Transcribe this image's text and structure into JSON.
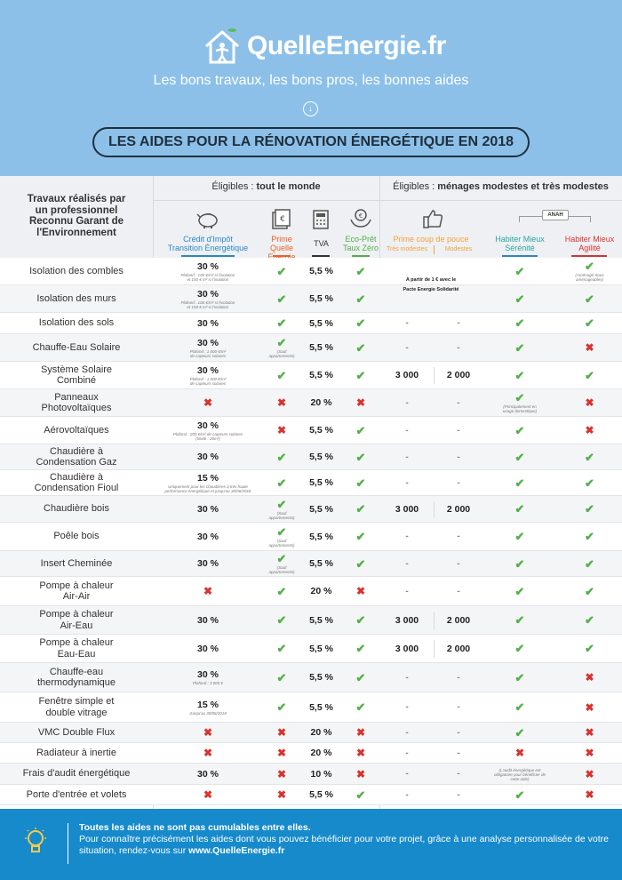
{
  "header": {
    "brand": "QuelleEnergie.fr",
    "tagline": "Les bons travaux, les bons pros, les bonnes aides",
    "title": "LES AIDES POUR LA RÉNOVATION ÉNERGÉTIQUE EN 2018"
  },
  "table": {
    "row_header": "Travaux réalisés par un professionnel Reconnu Garant de l'Environnement",
    "groups": {
      "all_prefix": "Éligibles :",
      "all": "tout le monde",
      "modest_prefix": "Éligibles :",
      "modest": "ménages modestes et très modestes"
    },
    "columns": {
      "citee_1": "Crédit d'Impôt",
      "citee_2": "Transition Énergétique",
      "prime_1": "Prime",
      "prime_2": "Quelle Energie",
      "tva": "TVA",
      "eco_1": "Eco-Prêt",
      "eco_2": "Taux Zéro",
      "coup": "Prime coup de pouce",
      "tres_modestes": "Très modestes",
      "modestes": "Modestes",
      "anah": "ANAH",
      "serenite_1": "Habiter Mieux",
      "serenite_2": "Sérénité",
      "agilite_1": "Habiter Mieux",
      "agilite_2": "Agilité"
    },
    "colors": {
      "check": "#53b049",
      "cross": "#d9332e",
      "citee": "#2a87c8",
      "prime": "#e8632a",
      "tva": "#333333",
      "eco": "#53b049",
      "coup": "#f2a33a"
    },
    "pacte_1": "A partir de 1 € avec le",
    "pacte_2": "Pacte Energie Solidarité",
    "rows": [
      {
        "name": [
          "Isolation des combles"
        ],
        "citee": "30 %",
        "citee_note": [
          "Plafond : 100 €/m² si l'isolation",
          "et 150 € m² si l'isolation"
        ],
        "prime": "c",
        "prime_note": "",
        "tva": "5,5 %",
        "eco": "c",
        "tm": "",
        "m": "",
        "ser": "c",
        "ser_note": "",
        "agi": "c",
        "agi_note": [
          "(Aménagé Sous",
          "aménageables)"
        ]
      },
      {
        "name": [
          "Isolation des murs"
        ],
        "citee": "30 %",
        "citee_note": [
          "Plafond : 100 €/m² si l'isolation",
          "et 150 € m² si l'isolation"
        ],
        "prime": "c",
        "prime_note": "",
        "tva": "5,5 %",
        "eco": "c",
        "tm": "",
        "m": "",
        "ser": "c",
        "ser_note": "",
        "agi": "c",
        "agi_note": ""
      },
      {
        "name": [
          "Isolation des sols"
        ],
        "citee": "30 %",
        "citee_note": "",
        "prime": "c",
        "prime_note": "",
        "tva": "5,5 %",
        "eco": "c",
        "tm": "-",
        "m": "-",
        "ser": "c",
        "ser_note": "",
        "agi": "c",
        "agi_note": ""
      },
      {
        "name": [
          "Chauffe-Eau Solaire"
        ],
        "citee": "30 %",
        "citee_note": [
          "Plafond : 1 000 €/m²",
          "de capteurs solaires"
        ],
        "prime": "c",
        "prime_note": [
          "(Sauf",
          "appartements)"
        ],
        "tva": "5,5 %",
        "eco": "c",
        "tm": "-",
        "m": "-",
        "ser": "c",
        "ser_note": "",
        "agi": "x",
        "agi_note": ""
      },
      {
        "name": [
          "Système Solaire",
          "Combiné"
        ],
        "citee": "30 %",
        "citee_note": [
          "Plafond : 1 000 €/m²",
          "de capteurs solaires"
        ],
        "prime": "c",
        "prime_note": "",
        "tva": "5,5 %",
        "eco": "c",
        "tm": "3 000",
        "m": "2 000",
        "ser": "c",
        "ser_note": "",
        "agi": "c",
        "agi_note": ""
      },
      {
        "name": [
          "Panneaux",
          "Photovoltaïques"
        ],
        "citee": "x",
        "citee_note": "",
        "prime": "x",
        "prime_note": "",
        "tva": "20 %",
        "eco": "x",
        "tm": "-",
        "m": "-",
        "ser": "c",
        "ser_note": [
          "(Principalement en",
          "usage domestique)"
        ],
        "agi": "x",
        "agi_note": ""
      },
      {
        "name": [
          "Aérovoltaïques"
        ],
        "citee": "30 %",
        "citee_note": [
          "Plafond : 200 €/m² de capteurs solaires",
          "(limité : 20m²)"
        ],
        "prime": "x",
        "prime_note": "",
        "tva": "5,5 %",
        "eco": "c",
        "tm": "-",
        "m": "-",
        "ser": "c",
        "ser_note": "",
        "agi": "x",
        "agi_note": ""
      },
      {
        "name": [
          "Chaudière à",
          "Condensation Gaz"
        ],
        "citee": "30 %",
        "citee_note": "",
        "prime": "c",
        "prime_note": "",
        "tva": "5,5 %",
        "eco": "c",
        "tm": "-",
        "m": "-",
        "ser": "c",
        "ser_note": "",
        "agi": "c",
        "agi_note": ""
      },
      {
        "name": [
          "Chaudière à",
          "Condensation Fioul"
        ],
        "citee": "15 %",
        "citee_note": [
          "Uniquement pour les chaudières à très haute",
          "performance énergétique et jusqu'au 30/06/2018"
        ],
        "prime": "c",
        "prime_note": "",
        "tva": "5,5 %",
        "eco": "c",
        "tm": "-",
        "m": "-",
        "ser": "c",
        "ser_note": "",
        "agi": "c",
        "agi_note": ""
      },
      {
        "name": [
          "Chaudière bois"
        ],
        "citee": "30 %",
        "citee_note": "",
        "prime": "c",
        "prime_note": [
          "(Sauf",
          "appartements)"
        ],
        "tva": "5,5 %",
        "eco": "c",
        "tm": "3 000",
        "m": "2 000",
        "ser": "c",
        "ser_note": "",
        "agi": "c",
        "agi_note": ""
      },
      {
        "name": [
          "Poêle bois"
        ],
        "citee": "30 %",
        "citee_note": "",
        "prime": "c",
        "prime_note": [
          "(Sauf",
          "appartements)"
        ],
        "tva": "5,5 %",
        "eco": "c",
        "tm": "-",
        "m": "-",
        "ser": "c",
        "ser_note": "",
        "agi": "c",
        "agi_note": ""
      },
      {
        "name": [
          "Insert Cheminée"
        ],
        "citee": "30 %",
        "citee_note": "",
        "prime": "c",
        "prime_note": [
          "(Sauf",
          "appartements)"
        ],
        "tva": "5,5 %",
        "eco": "c",
        "tm": "-",
        "m": "-",
        "ser": "c",
        "ser_note": "",
        "agi": "c",
        "agi_note": ""
      },
      {
        "name": [
          "Pompe à chaleur",
          "Air-Air"
        ],
        "citee": "x",
        "citee_note": "",
        "prime": "c",
        "prime_note": "",
        "tva": "20 %",
        "eco": "x",
        "tm": "-",
        "m": "-",
        "ser": "c",
        "ser_note": "",
        "agi": "c",
        "agi_note": ""
      },
      {
        "name": [
          "Pompe à chaleur",
          "Air-Eau"
        ],
        "citee": "30 %",
        "citee_note": "",
        "prime": "c",
        "prime_note": "",
        "tva": "5,5 %",
        "eco": "c",
        "tm": "3 000",
        "m": "2 000",
        "ser": "c",
        "ser_note": "",
        "agi": "c",
        "agi_note": ""
      },
      {
        "name": [
          "Pompe à chaleur",
          "Eau-Eau"
        ],
        "citee": "30 %",
        "citee_note": "",
        "prime": "c",
        "prime_note": "",
        "tva": "5,5 %",
        "eco": "c",
        "tm": "3 000",
        "m": "2 000",
        "ser": "c",
        "ser_note": "",
        "agi": "c",
        "agi_note": ""
      },
      {
        "name": [
          "Chauffe-eau",
          "thermodynamique"
        ],
        "citee": "30 %",
        "citee_note": [
          "Plafond : 3 000 €"
        ],
        "prime": "c",
        "prime_note": "",
        "tva": "5,5 %",
        "eco": "c",
        "tm": "-",
        "m": "-",
        "ser": "c",
        "ser_note": "",
        "agi": "x",
        "agi_note": ""
      },
      {
        "name": [
          "Fenêtre simple et",
          "double vitrage"
        ],
        "citee": "15 %",
        "citee_note": [
          "Jusqu'au 30/06/2018"
        ],
        "prime": "c",
        "prime_note": "",
        "tva": "5,5 %",
        "eco": "c",
        "tm": "-",
        "m": "-",
        "ser": "c",
        "ser_note": "",
        "agi": "x",
        "agi_note": ""
      },
      {
        "name": [
          "VMC Double Flux"
        ],
        "citee": "x",
        "citee_note": "",
        "prime": "x",
        "prime_note": "",
        "tva": "20 %",
        "eco": "x",
        "tm": "-",
        "m": "-",
        "ser": "c",
        "ser_note": "",
        "agi": "x",
        "agi_note": ""
      },
      {
        "name": [
          "Radiateur à inertie"
        ],
        "citee": "x",
        "citee_note": "",
        "prime": "x",
        "prime_note": "",
        "tva": "20 %",
        "eco": "x",
        "tm": "-",
        "m": "-",
        "ser": "x",
        "ser_note": "",
        "agi": "x",
        "agi_note": ""
      },
      {
        "name": [
          "Frais d'audit énergétique"
        ],
        "citee": "30 %",
        "citee_note": "",
        "prime": "x",
        "prime_note": "",
        "tva": "10 %",
        "eco": "x",
        "tm": "-",
        "m": "-",
        "ser": "",
        "ser_note": [
          "(L'audit énergétique est",
          "obligatoire pour bénéficier de",
          "cette aide)"
        ],
        "agi": "x",
        "agi_note": ""
      },
      {
        "name": [
          "Porte d'entrée et volets"
        ],
        "citee": "x",
        "citee_note": "",
        "prime": "x",
        "prime_note": "",
        "tva": "5,5 %",
        "eco": "c",
        "tm": "-",
        "m": "-",
        "ser": "c",
        "ser_note": "",
        "agi": "x",
        "agi_note": ""
      }
    ]
  },
  "footer": {
    "bold": "Toutes les aides ne sont pas cumulables entre elles.",
    "text": "Pour connaître précisément les aides dont vous pouvez bénéficier pour votre projet, grâce à une analyse personnalisée de votre situation, rendez-vous sur",
    "link": "www.QuelleEnergie.fr"
  }
}
